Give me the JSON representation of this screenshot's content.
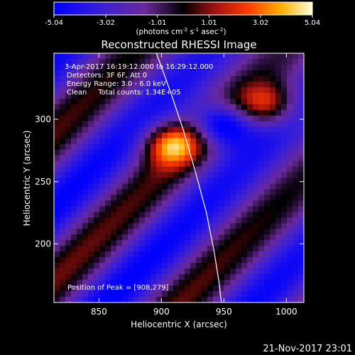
{
  "colorbar": {
    "tick_labels": [
      "-5.04",
      "-3.02",
      "-1.01",
      "1.01",
      "3.02",
      "5.04"
    ],
    "range": [
      -5.04,
      5.04
    ],
    "units_prefix": "(photons cm",
    "units_sup1": "-2",
    "units_mid": " s",
    "units_sup2": "-1",
    "units_mid2": " asec",
    "units_sup3": "-2",
    "units_suffix": ")"
  },
  "plot": {
    "title": "Reconstructed RHESSI Image",
    "annotations": [
      "3-Apr-2017 16:19:12.000 to 16:29:12.000",
      "Detectors: 3F 6F, Att 0",
      "Energy Range: 3.0 - 6.0 keV",
      "Clean     Total counts: 1.34E+05"
    ],
    "peak_text": "Position of Peak = [908,279]",
    "footer_date": "21-Nov-2017 23:01"
  },
  "chart_data": {
    "type": "heatmap",
    "title": "Reconstructed RHESSI Image",
    "xlabel": "Heliocentric X (arcsec)",
    "ylabel": "Heliocentric Y (arcsec)",
    "xlim": [
      814,
      1014
    ],
    "ylim": [
      153,
      353
    ],
    "x_ticks": [
      850,
      900,
      950,
      1000
    ],
    "y_ticks": [
      200,
      250,
      300
    ],
    "x_tick_labels": [
      "850",
      "900",
      "950",
      "1000"
    ],
    "y_tick_labels": [
      "200",
      "250",
      "300"
    ],
    "peak": [
      908,
      279
    ],
    "limb_points": [
      [
        896,
        353
      ],
      [
        908,
        320
      ],
      [
        918,
        290
      ],
      [
        928,
        255
      ],
      [
        936,
        225
      ],
      [
        942,
        195
      ],
      [
        946,
        170
      ],
      [
        948,
        153
      ]
    ],
    "sources": [
      {
        "x": 908,
        "y": 280,
        "value": 5.04
      },
      {
        "x": 985,
        "y": 312,
        "value": 4.0
      },
      {
        "x": 948,
        "y": 296,
        "value": -5.0
      }
    ],
    "colorbar_range": [
      -5.04,
      5.04
    ]
  }
}
